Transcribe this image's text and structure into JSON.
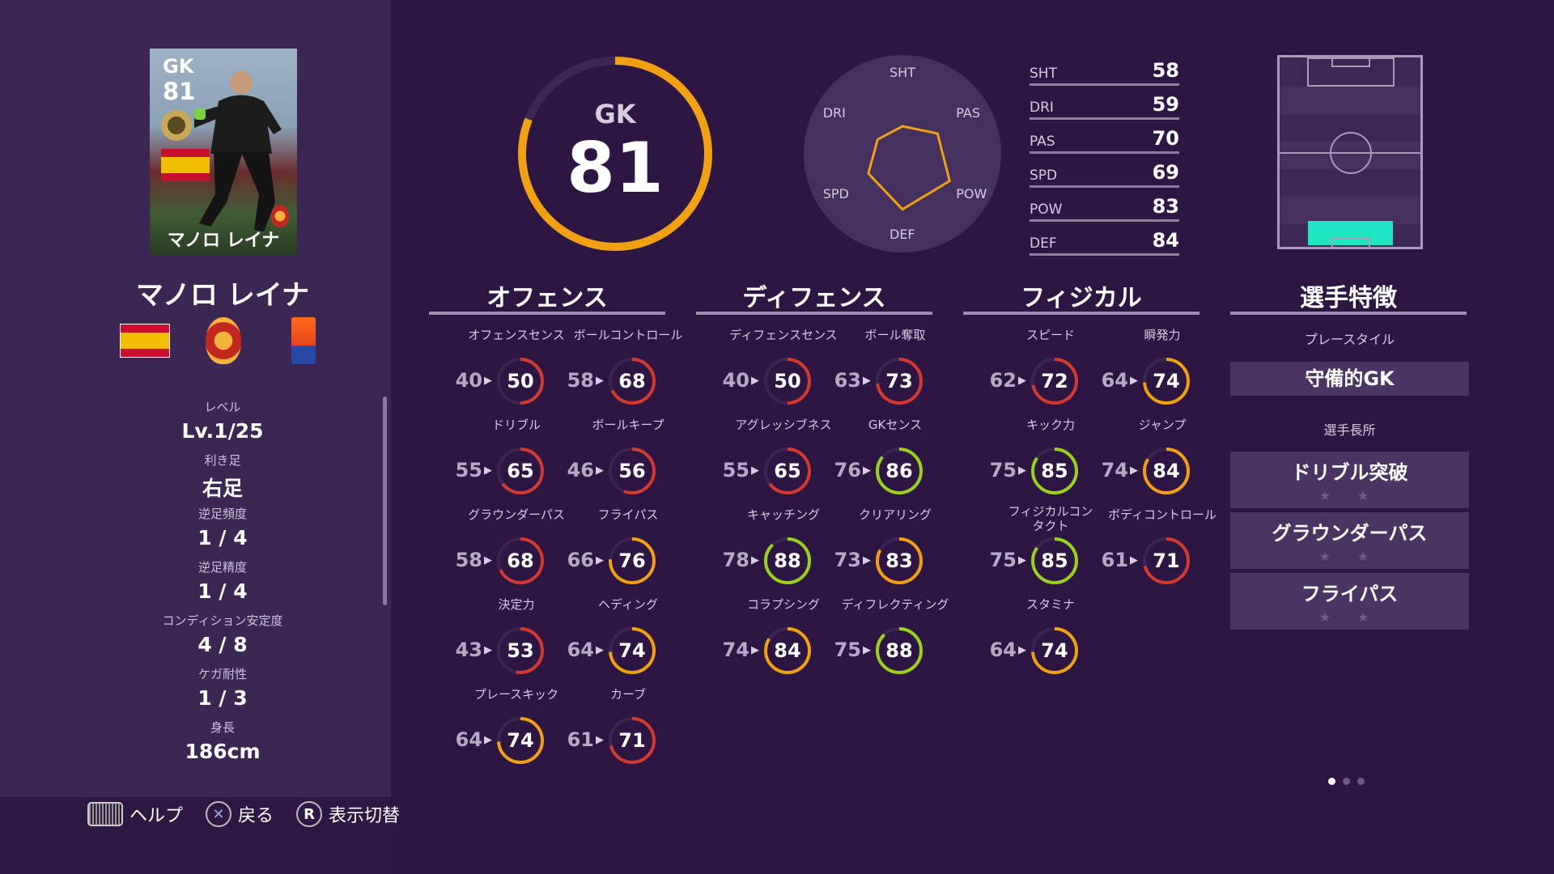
{
  "colors": {
    "bg": "#2e1644",
    "left_panel": "#3c2654",
    "ring_orange": "#f0a010",
    "ring_red": "#d43a2e",
    "ring_green": "#9ad219",
    "pitch_highlight": "#1fe5c2"
  },
  "card": {
    "position": "GK",
    "overall": "81",
    "name": "マノロ レイナ"
  },
  "player": {
    "name": "マノロ レイナ",
    "nation": "spain-flag",
    "club": "mallorca-crest",
    "league": "espana-league-badge"
  },
  "profile": [
    {
      "label": "レベル",
      "value": "Lv.1/25"
    },
    {
      "label": "利き足",
      "value": "右足"
    },
    {
      "label": "逆足頻度",
      "value": "1 / 4"
    },
    {
      "label": "逆足精度",
      "value": "1 / 4"
    },
    {
      "label": "コンディション安定度",
      "value": "4 / 8"
    },
    {
      "label": "ケガ耐性",
      "value": "1 / 3"
    },
    {
      "label": "身長",
      "value": "186cm"
    }
  ],
  "overall": {
    "position": "GK",
    "value": "81",
    "progress": 0.81
  },
  "radar": {
    "labels": [
      "SHT",
      "PAS",
      "POW",
      "DEF",
      "SPD",
      "DRI"
    ],
    "values": [
      58,
      70,
      83,
      84,
      69,
      59
    ]
  },
  "stats": [
    {
      "key": "SHT",
      "value": "58"
    },
    {
      "key": "DRI",
      "value": "59"
    },
    {
      "key": "PAS",
      "value": "70"
    },
    {
      "key": "SPD",
      "value": "69"
    },
    {
      "key": "POW",
      "value": "83"
    },
    {
      "key": "DEF",
      "value": "84"
    }
  ],
  "sections": {
    "offense": {
      "title": "オフェンス",
      "items": [
        {
          "label": "オフェンスセンス",
          "base": "40",
          "value": "50"
        },
        {
          "label": "ボールコントロール",
          "base": "58",
          "value": "68"
        },
        {
          "label": "ドリブル",
          "base": "55",
          "value": "65"
        },
        {
          "label": "ボールキープ",
          "base": "46",
          "value": "56"
        },
        {
          "label": "グラウンダーパス",
          "base": "58",
          "value": "68"
        },
        {
          "label": "フライパス",
          "base": "66",
          "value": "76"
        },
        {
          "label": "決定力",
          "base": "43",
          "value": "53"
        },
        {
          "label": "ヘディング",
          "base": "64",
          "value": "74"
        },
        {
          "label": "プレースキック",
          "base": "64",
          "value": "74"
        },
        {
          "label": "カーブ",
          "base": "61",
          "value": "71"
        }
      ]
    },
    "defense": {
      "title": "ディフェンス",
      "items": [
        {
          "label": "ディフェンスセンス",
          "base": "40",
          "value": "50"
        },
        {
          "label": "ボール奪取",
          "base": "63",
          "value": "73"
        },
        {
          "label": "アグレッシブネス",
          "base": "55",
          "value": "65"
        },
        {
          "label": "GKセンス",
          "base": "76",
          "value": "86"
        },
        {
          "label": "キャッチング",
          "base": "78",
          "value": "88"
        },
        {
          "label": "クリアリング",
          "base": "73",
          "value": "83"
        },
        {
          "label": "コラプシング",
          "base": "74",
          "value": "84"
        },
        {
          "label": "ディフレクティング",
          "base": "75",
          "value": "88"
        }
      ]
    },
    "physical": {
      "title": "フィジカル",
      "items": [
        {
          "label": "スピード",
          "base": "62",
          "value": "72"
        },
        {
          "label": "瞬発力",
          "base": "64",
          "value": "74"
        },
        {
          "label": "キック力",
          "base": "75",
          "value": "85"
        },
        {
          "label": "ジャンプ",
          "base": "74",
          "value": "84"
        },
        {
          "label": "フィジカルコンタクト",
          "base": "75",
          "value": "85"
        },
        {
          "label": "ボディコントロール",
          "base": "61",
          "value": "71"
        },
        {
          "label": "スタミナ",
          "base": "64",
          "value": "74"
        }
      ]
    }
  },
  "traits": {
    "title": "選手特徴",
    "playstyle_label": "プレースタイル",
    "playstyle": "守備的GK",
    "skills_label": "選手長所",
    "skills": [
      {
        "name": "ドリブル突破",
        "stars": "★ ★"
      },
      {
        "name": "グラウンダーパス",
        "stars": "★ ★"
      },
      {
        "name": "フライパス",
        "stars": "★ ★"
      }
    ]
  },
  "footer": {
    "help": "ヘルプ",
    "back": "戻る",
    "toggle": "表示切替",
    "back_glyph": "✕",
    "toggle_glyph": "R"
  },
  "page_indicator": {
    "count": 3,
    "active": 0
  }
}
